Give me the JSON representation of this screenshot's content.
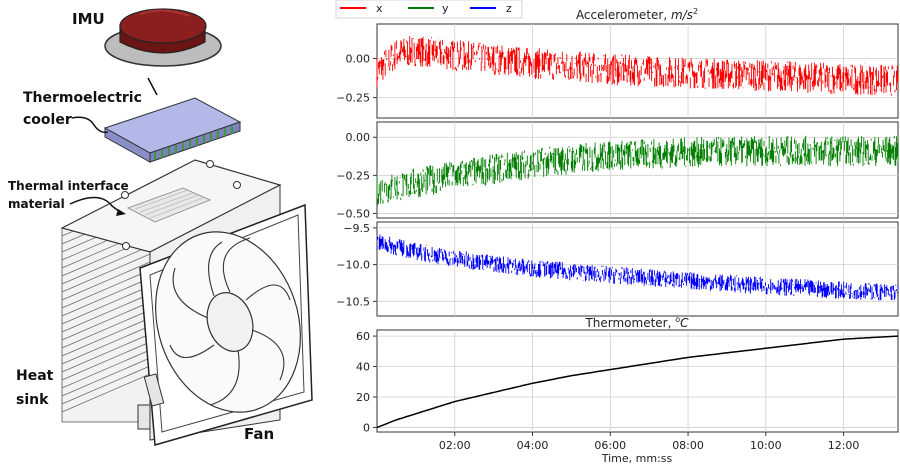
{
  "illustration": {
    "labels": {
      "imu": "IMU",
      "tec_line1": "Thermoelectric",
      "tec_line2": "cooler",
      "tim_line1": "Thermal interface",
      "tim_line2": "material",
      "heatsink_line1": "Heat",
      "heatsink_line2": "sink",
      "fan": "Fan"
    },
    "colors": {
      "imu": "#8b1f1f",
      "tec_top": "#b4b8e8",
      "tec_side": "#8a8fc8",
      "tec_stripes": "#3a9a3a"
    }
  },
  "legend": {
    "items": [
      {
        "name": "x",
        "color": "#ff0000"
      },
      {
        "name": "y",
        "color": "#008000"
      },
      {
        "name": "z",
        "color": "#0000ff"
      }
    ]
  },
  "chart_data": [
    {
      "type": "line",
      "title": "Accelerometer, m/s²",
      "title_prefix": "Accelerometer, ",
      "title_unit": "m/s",
      "title_exp": "2",
      "series": [
        {
          "name": "x",
          "color": "#ff0000",
          "x": [
            0,
            0.5,
            1,
            2,
            4,
            6,
            8,
            10,
            12,
            13.4
          ],
          "y": [
            -0.08,
            0.03,
            0.05,
            0.02,
            -0.03,
            -0.07,
            -0.09,
            -0.11,
            -0.13,
            -0.14
          ],
          "noise": 0.1
        }
      ],
      "xlim": [
        0,
        13.4
      ],
      "ylim": [
        -0.38,
        0.22
      ],
      "yticks": [
        0.0,
        -0.25
      ],
      "ytick_labels": [
        "0.00",
        "−0.25"
      ]
    },
    {
      "type": "line",
      "series": [
        {
          "name": "y",
          "color": "#008000",
          "x": [
            0,
            1,
            2,
            4,
            6,
            8,
            10,
            12,
            13.4
          ],
          "y": [
            -0.35,
            -0.3,
            -0.25,
            -0.17,
            -0.12,
            -0.1,
            -0.09,
            -0.09,
            -0.09
          ],
          "noise": 0.1
        }
      ],
      "xlim": [
        0,
        13.4
      ],
      "ylim": [
        -0.53,
        0.1
      ],
      "yticks": [
        0.0,
        -0.25,
        -0.5
      ],
      "ytick_labels": [
        "0.00",
        "−0.25",
        "−0.50"
      ]
    },
    {
      "type": "line",
      "series": [
        {
          "name": "z",
          "color": "#0000ff",
          "x": [
            0,
            1,
            2,
            4,
            6,
            8,
            10,
            12,
            13.4
          ],
          "y": [
            -9.7,
            -9.82,
            -9.92,
            -10.05,
            -10.14,
            -10.22,
            -10.29,
            -10.35,
            -10.38
          ],
          "noise": 0.12
        }
      ],
      "xlim": [
        0,
        13.4
      ],
      "ylim": [
        -10.7,
        -9.42
      ],
      "yticks": [
        -9.5,
        -10.0,
        -10.5
      ],
      "ytick_labels": [
        "−9.5",
        "−10.0",
        "−10.5"
      ]
    },
    {
      "type": "line",
      "title": "Thermometer, °C",
      "title_prefix": "Thermometer, ",
      "title_sup": "o",
      "title_unit": "C",
      "series": [
        {
          "name": "temperature",
          "color": "#000000",
          "x": [
            0,
            0.5,
            1,
            2,
            3,
            4,
            5,
            6,
            7,
            8,
            9,
            10,
            11,
            12,
            13.4
          ],
          "y": [
            0,
            5,
            9,
            17,
            23,
            29,
            34,
            38,
            42,
            46,
            49,
            52,
            55,
            58,
            60
          ]
        }
      ],
      "xlim": [
        0,
        13.4
      ],
      "ylim": [
        -3,
        64
      ],
      "yticks": [
        0,
        20,
        40,
        60
      ],
      "ytick_labels": [
        "0",
        "20",
        "40",
        "60"
      ],
      "xticks": [
        2,
        4,
        6,
        8,
        10,
        12
      ],
      "xtick_labels": [
        "02:00",
        "04:00",
        "06:00",
        "08:00",
        "10:00",
        "12:00"
      ],
      "xlabel": "Time, mm:ss"
    }
  ]
}
